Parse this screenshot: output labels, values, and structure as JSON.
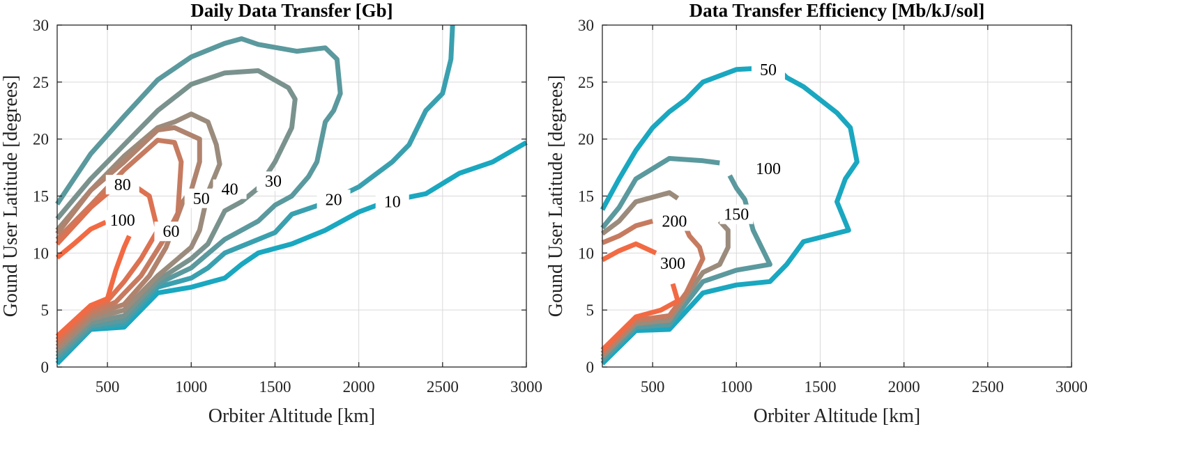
{
  "chart_data": [
    {
      "type": "line",
      "subtype": "contour",
      "title": "Daily Data Transfer [Gb]",
      "xlabel": "Orbiter Altitude [km]",
      "ylabel": "Gound User Latitude [degrees]",
      "xlim": [
        200,
        3000
      ],
      "ylim": [
        0,
        30
      ],
      "xticks": [
        500,
        1000,
        1500,
        2000,
        2500,
        3000
      ],
      "yticks": [
        0,
        5,
        10,
        15,
        20,
        25,
        30
      ],
      "grid": true,
      "colors": {
        "low": "#1aa7c0",
        "mid": "#9a8b7c",
        "high": "#f26a43"
      },
      "series": [
        {
          "level": 10,
          "label": "10",
          "label_at": [
            2200,
            14.5
          ],
          "points": [
            [
              200,
              0.3
            ],
            [
              400,
              3.3
            ],
            [
              600,
              3.5
            ],
            [
              800,
              6.5
            ],
            [
              1000,
              7.0
            ],
            [
              1200,
              7.8
            ],
            [
              1300,
              9.0
            ],
            [
              1400,
              10.0
            ],
            [
              1600,
              10.8
            ],
            [
              1800,
              12.0
            ],
            [
              2000,
              13.6
            ],
            [
              2200,
              14.7
            ],
            [
              2300,
              14.9
            ],
            [
              2400,
              15.2
            ],
            [
              2600,
              17.0
            ],
            [
              2800,
              18.0
            ],
            [
              3000,
              19.7
            ]
          ]
        },
        {
          "level": 20,
          "label": "20",
          "label_at": [
            1850,
            14.7
          ],
          "points": [
            [
              200,
              0.6
            ],
            [
              400,
              3.4
            ],
            [
              600,
              3.8
            ],
            [
              800,
              7.0
            ],
            [
              1000,
              7.8
            ],
            [
              1100,
              8.7
            ],
            [
              1200,
              10.0
            ],
            [
              1400,
              11.2
            ],
            [
              1500,
              11.8
            ],
            [
              1600,
              13.4
            ],
            [
              1800,
              14.4
            ],
            [
              2000,
              15.8
            ],
            [
              2200,
              18.0
            ],
            [
              2300,
              19.5
            ],
            [
              2400,
              22.5
            ],
            [
              2500,
              24.0
            ],
            [
              2550,
              27.0
            ],
            [
              2560,
              30.0
            ]
          ]
        },
        {
          "level": 30,
          "label": "30",
          "label_at": [
            1490,
            16.3
          ],
          "points": [
            [
              200,
              0.9
            ],
            [
              400,
              3.6
            ],
            [
              600,
              4.1
            ],
            [
              800,
              7.3
            ],
            [
              1000,
              8.7
            ],
            [
              1200,
              11.2
            ],
            [
              1400,
              12.8
            ],
            [
              1500,
              14.2
            ],
            [
              1600,
              15.0
            ],
            [
              1700,
              16.7
            ],
            [
              1750,
              18.0
            ],
            [
              1800,
              21.5
            ],
            [
              1850,
              22.5
            ],
            [
              1890,
              24.0
            ],
            [
              1870,
              27.0
            ],
            [
              1800,
              28.0
            ],
            [
              1630,
              27.7
            ],
            [
              1400,
              28.3
            ],
            [
              1300,
              28.8
            ],
            [
              1200,
              28.4
            ],
            [
              1000,
              27.2
            ],
            [
              800,
              25.2
            ],
            [
              600,
              22.0
            ],
            [
              400,
              18.7
            ],
            [
              200,
              14.3
            ]
          ]
        },
        {
          "level": 40,
          "label": "40",
          "label_at": [
            1230,
            15.6
          ],
          "points": [
            [
              200,
              1.2
            ],
            [
              400,
              3.9
            ],
            [
              600,
              4.5
            ],
            [
              800,
              7.6
            ],
            [
              1000,
              9.5
            ],
            [
              1100,
              10.8
            ],
            [
              1200,
              13.7
            ],
            [
              1300,
              14.5
            ],
            [
              1400,
              15.7
            ],
            [
              1500,
              18.0
            ],
            [
              1600,
              21.0
            ],
            [
              1620,
              23.5
            ],
            [
              1580,
              24.5
            ],
            [
              1400,
              26.0
            ],
            [
              1200,
              25.8
            ],
            [
              1000,
              24.8
            ],
            [
              800,
              22.5
            ],
            [
              600,
              19.5
            ],
            [
              400,
              16.5
            ],
            [
              200,
              13.0
            ]
          ]
        },
        {
          "level": 50,
          "label": "50",
          "label_at": [
            1060,
            14.8
          ],
          "points": [
            [
              200,
              1.5
            ],
            [
              400,
              4.2
            ],
            [
              600,
              5.0
            ],
            [
              800,
              8.0
            ],
            [
              1000,
              10.5
            ],
            [
              1050,
              12.0
            ],
            [
              1100,
              15.3
            ],
            [
              1170,
              17.8
            ],
            [
              1150,
              19.5
            ],
            [
              1100,
              21.5
            ],
            [
              1000,
              22.2
            ],
            [
              900,
              21.5
            ],
            [
              800,
              21.0
            ],
            [
              600,
              18.5
            ],
            [
              400,
              15.5
            ],
            [
              200,
              12.0
            ]
          ]
        },
        {
          "level": 60,
          "label": "60",
          "label_at": [
            880,
            11.9
          ],
          "points": [
            [
              200,
              1.8
            ],
            [
              400,
              4.5
            ],
            [
              600,
              5.5
            ],
            [
              750,
              8.0
            ],
            [
              850,
              10.5
            ],
            [
              950,
              14.5
            ],
            [
              1000,
              15.5
            ],
            [
              1050,
              18.0
            ],
            [
              1050,
              20.0
            ],
            [
              900,
              21.0
            ],
            [
              800,
              20.8
            ],
            [
              600,
              18.0
            ],
            [
              400,
              15.5
            ],
            [
              200,
              11.7
            ]
          ]
        },
        {
          "level": 70,
          "label": "",
          "label_at": null,
          "points": [
            [
              200,
              2.1
            ],
            [
              400,
              4.8
            ],
            [
              550,
              5.7
            ],
            [
              700,
              8.0
            ],
            [
              850,
              11.5
            ],
            [
              920,
              13.5
            ],
            [
              940,
              18.0
            ],
            [
              900,
              19.7
            ],
            [
              800,
              19.9
            ],
            [
              600,
              17.3
            ],
            [
              400,
              14.2
            ],
            [
              200,
              11.2
            ]
          ]
        },
        {
          "level": 80,
          "label": "80",
          "label_at": [
            590,
            16.0
          ],
          "points": [
            [
              200,
              2.4
            ],
            [
              400,
              5.1
            ],
            [
              500,
              5.8
            ],
            [
              600,
              7.5
            ],
            [
              700,
              9.5
            ],
            [
              800,
              12.0
            ],
            [
              750,
              15.0
            ],
            [
              700,
              15.5
            ],
            [
              650,
              16.0
            ],
            [
              520,
              15.5
            ],
            [
              400,
              14.0
            ],
            [
              200,
              10.8
            ]
          ]
        },
        {
          "level": 100,
          "label": "100",
          "label_at": [
            590,
            12.9
          ],
          "points": [
            [
              200,
              2.7
            ],
            [
              400,
              5.4
            ],
            [
              500,
              6.0
            ],
            [
              550,
              8.5
            ],
            [
              600,
              10.5
            ],
            [
              630,
              11.5
            ]
          ],
          "points_b": [
            [
              200,
              9.6
            ],
            [
              300,
              10.8
            ],
            [
              400,
              12.1
            ],
            [
              490,
              12.7
            ]
          ]
        }
      ]
    },
    {
      "type": "line",
      "subtype": "contour",
      "title": "Data Transfer Efficiency [Mb/kJ/sol]",
      "xlabel": "Orbiter Altitude [km]",
      "ylabel": "Gound User Latitude [degrees]",
      "xlim": [
        200,
        3000
      ],
      "ylim": [
        0,
        30
      ],
      "xticks": [
        500,
        1000,
        1500,
        2000,
        2500,
        3000
      ],
      "yticks": [
        0,
        5,
        10,
        15,
        20,
        25,
        30
      ],
      "grid": true,
      "colors": {
        "low": "#1aa7c0",
        "mid": "#9a8b7c",
        "high": "#f26a43"
      },
      "series": [
        {
          "level": 50,
          "label": "50",
          "label_at": [
            1190,
            26.1
          ],
          "points": [
            [
              200,
              0.3
            ],
            [
              400,
              3.2
            ],
            [
              600,
              3.3
            ],
            [
              800,
              6.5
            ],
            [
              1000,
              7.2
            ],
            [
              1200,
              7.5
            ],
            [
              1300,
              9.0
            ],
            [
              1400,
              11.0
            ],
            [
              1670,
              12.0
            ],
            [
              1600,
              14.5
            ],
            [
              1650,
              16.5
            ],
            [
              1720,
              18.0
            ],
            [
              1680,
              21.0
            ],
            [
              1600,
              22.3
            ],
            [
              1400,
              24.6
            ],
            [
              1300,
              25.4
            ],
            [
              1250,
              26.1
            ],
            [
              1120,
              26.2
            ],
            [
              1000,
              26.1
            ],
            [
              800,
              25.0
            ],
            [
              700,
              23.5
            ],
            [
              600,
              22.4
            ],
            [
              500,
              21.0
            ],
            [
              400,
              19.0
            ],
            [
              300,
              16.5
            ],
            [
              200,
              13.8
            ]
          ]
        },
        {
          "level": 100,
          "label": "100",
          "label_at": [
            1190,
            17.4
          ],
          "points": [
            [
              200,
              0.6
            ],
            [
              400,
              3.5
            ],
            [
              600,
              3.7
            ],
            [
              800,
              7.5
            ],
            [
              1000,
              8.5
            ],
            [
              1200,
              9.0
            ],
            [
              1100,
              12.0
            ],
            [
              1050,
              14.7
            ],
            [
              1000,
              15.7
            ],
            [
              960,
              16.8
            ]
          ],
          "points_b": [
            [
              200,
              12.2
            ],
            [
              300,
              14.0
            ],
            [
              400,
              16.5
            ],
            [
              600,
              18.3
            ],
            [
              800,
              18.1
            ],
            [
              900,
              17.9
            ]
          ]
        },
        {
          "level": 150,
          "label": "150",
          "label_at": [
            1000,
            13.4
          ],
          "points": [
            [
              200,
              0.9
            ],
            [
              400,
              3.8
            ],
            [
              600,
              4.1
            ],
            [
              800,
              8.3
            ],
            [
              900,
              9.0
            ],
            [
              950,
              10.5
            ],
            [
              950,
              12.0
            ],
            [
              900,
              12.8
            ]
          ],
          "points_b": [
            [
              200,
              11.7
            ],
            [
              300,
              12.8
            ],
            [
              400,
              14.5
            ],
            [
              600,
              15.3
            ],
            [
              650,
              14.8
            ]
          ]
        },
        {
          "level": 200,
          "label": "200",
          "label_at": [
            630,
            12.8
          ],
          "points": [
            [
              200,
              1.2
            ],
            [
              400,
              4.1
            ],
            [
              600,
              4.5
            ],
            [
              700,
              6.5
            ],
            [
              800,
              9.5
            ],
            [
              780,
              10.5
            ],
            [
              720,
              11.5
            ],
            [
              680,
              12.8
            ]
          ],
          "points_b": [
            [
              200,
              10.9
            ],
            [
              300,
              11.5
            ],
            [
              400,
              12.4
            ],
            [
              500,
              12.8
            ]
          ]
        },
        {
          "level": 300,
          "label": "300",
          "label_at": [
            620,
            9.1
          ],
          "points": [
            [
              200,
              1.5
            ],
            [
              400,
              4.4
            ],
            [
              550,
              5.0
            ],
            [
              650,
              5.8
            ],
            [
              620,
              7.3
            ]
          ],
          "points_b": [
            [
              200,
              9.4
            ],
            [
              300,
              10.2
            ],
            [
              400,
              10.8
            ],
            [
              520,
              10.0
            ]
          ]
        }
      ]
    }
  ]
}
